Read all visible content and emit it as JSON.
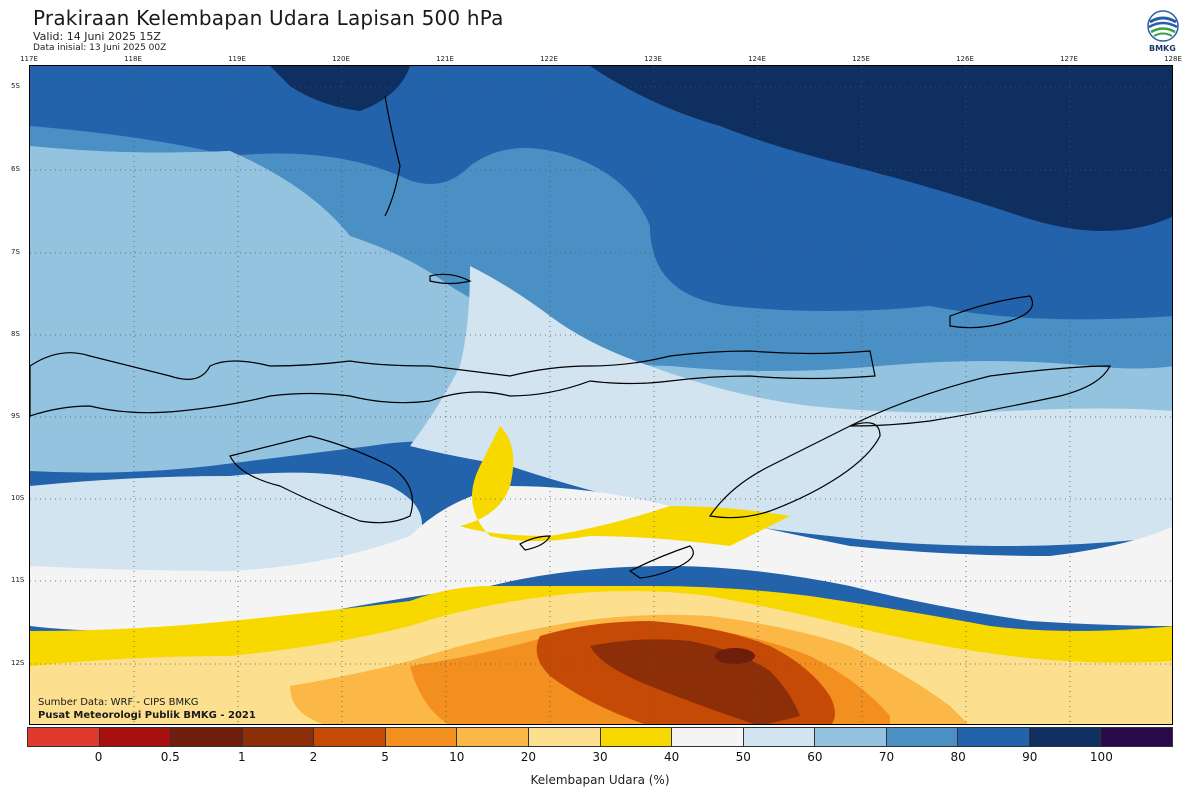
{
  "title": "Prakiraan Kelembapan Udara Lapisan 500 hPa",
  "valid": "Valid: 14 Juni 2025 15Z",
  "init": "Data inisial: 13 Juni 2025 00Z",
  "logo_text": "BMKG",
  "lon_labels": [
    "117E",
    "118E",
    "119E",
    "120E",
    "121E",
    "122E",
    "123E",
    "124E",
    "125E",
    "126E",
    "127E",
    "128E"
  ],
  "lat_labels": [
    "5S",
    "6S",
    "7S",
    "8S",
    "9S",
    "10S",
    "11S",
    "12S"
  ],
  "credit_source": "Sumber Data: WRF - CIPS BMKG",
  "credit_org": "Pusat Meteorologi Publik BMKG - 2021",
  "colorbar": {
    "label": "Kelembapan Udara (%)",
    "ticks": [
      "0",
      "0.5",
      "1",
      "2",
      "5",
      "10",
      "20",
      "30",
      "40",
      "50",
      "60",
      "70",
      "80",
      "90",
      "100"
    ],
    "colors": [
      "#e03a2f",
      "#a81010",
      "#6e1e0a",
      "#8c2e08",
      "#c44a06",
      "#f28f1f",
      "#fbb847",
      "#fddf90",
      "#f7d900",
      "#f4f4f4",
      "#d1e4f0",
      "#93c3df",
      "#4a90c4",
      "#2263ac",
      "#0e2f60",
      "#2a0a4a"
    ]
  },
  "colors": {
    "dark_navy": "#0e2f60",
    "blue": "#2263ac",
    "mid_blue": "#4a90c4",
    "light_blue": "#93c3df",
    "pale_blue": "#d1e4f0",
    "white": "#f4f4f4",
    "yellow": "#f7d900",
    "light_orange": "#fddf90",
    "orange": "#fbb847",
    "deep_orange": "#f28f1f",
    "burnt": "#c44a06",
    "brown": "#8c2e08",
    "dark_brown": "#6e1e0a"
  }
}
